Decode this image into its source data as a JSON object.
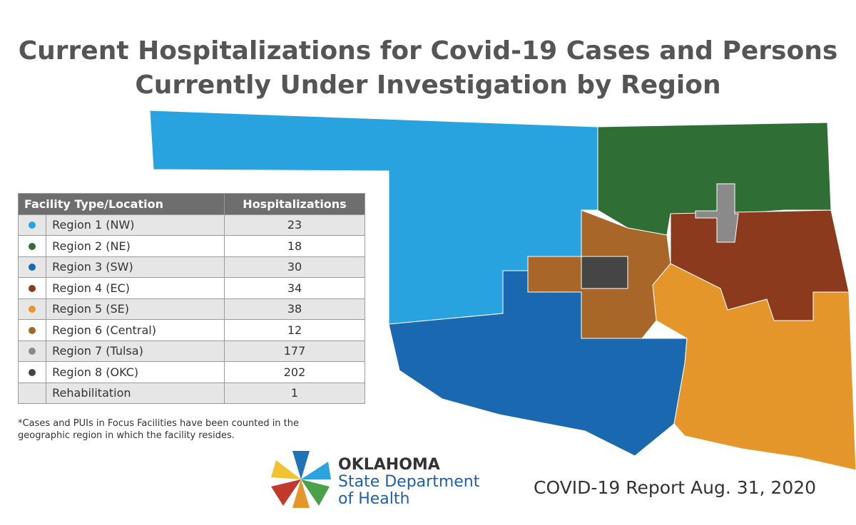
{
  "title_lines": [
    "Current Hospitalizations for Covid-19 Cases and Persons",
    "Currently Under Investigation by Region"
  ],
  "table": {
    "header": [
      "Facility Type/Location",
      "Hospitalizations"
    ],
    "rows": [
      {
        "label": "Region 1 (NW)",
        "value": 23,
        "color": "#29a3e0"
      },
      {
        "label": "Region 2 (NE)",
        "value": 18,
        "color": "#2f6e35"
      },
      {
        "label": "Region 3 (SW)",
        "value": 30,
        "color": "#1a69b0"
      },
      {
        "label": "Region 4 (EC)",
        "value": 34,
        "color": "#8c3a1e"
      },
      {
        "label": "Region 5 (SE)",
        "value": 38,
        "color": "#e4962a"
      },
      {
        "label": "Region 6 (Central)",
        "value": 12,
        "color": "#a86628"
      },
      {
        "label": "Region 7 (Tulsa)",
        "value": 177,
        "color": "#8a8a8a"
      },
      {
        "label": "Region 8 (OKC)",
        "value": 202,
        "color": "#454545"
      },
      {
        "label": "Rehabilitation",
        "value": 1
      }
    ]
  },
  "footnote": [
    "*Cases and PUIs in Focus Facilities have been counted in the",
    "geographic region in which the facility resides."
  ],
  "logo": {
    "name": "OKLAHOMA",
    "line1": "State Department",
    "line2": "of Health"
  },
  "report": "COVID-19 Report Aug. 31, 2020"
}
